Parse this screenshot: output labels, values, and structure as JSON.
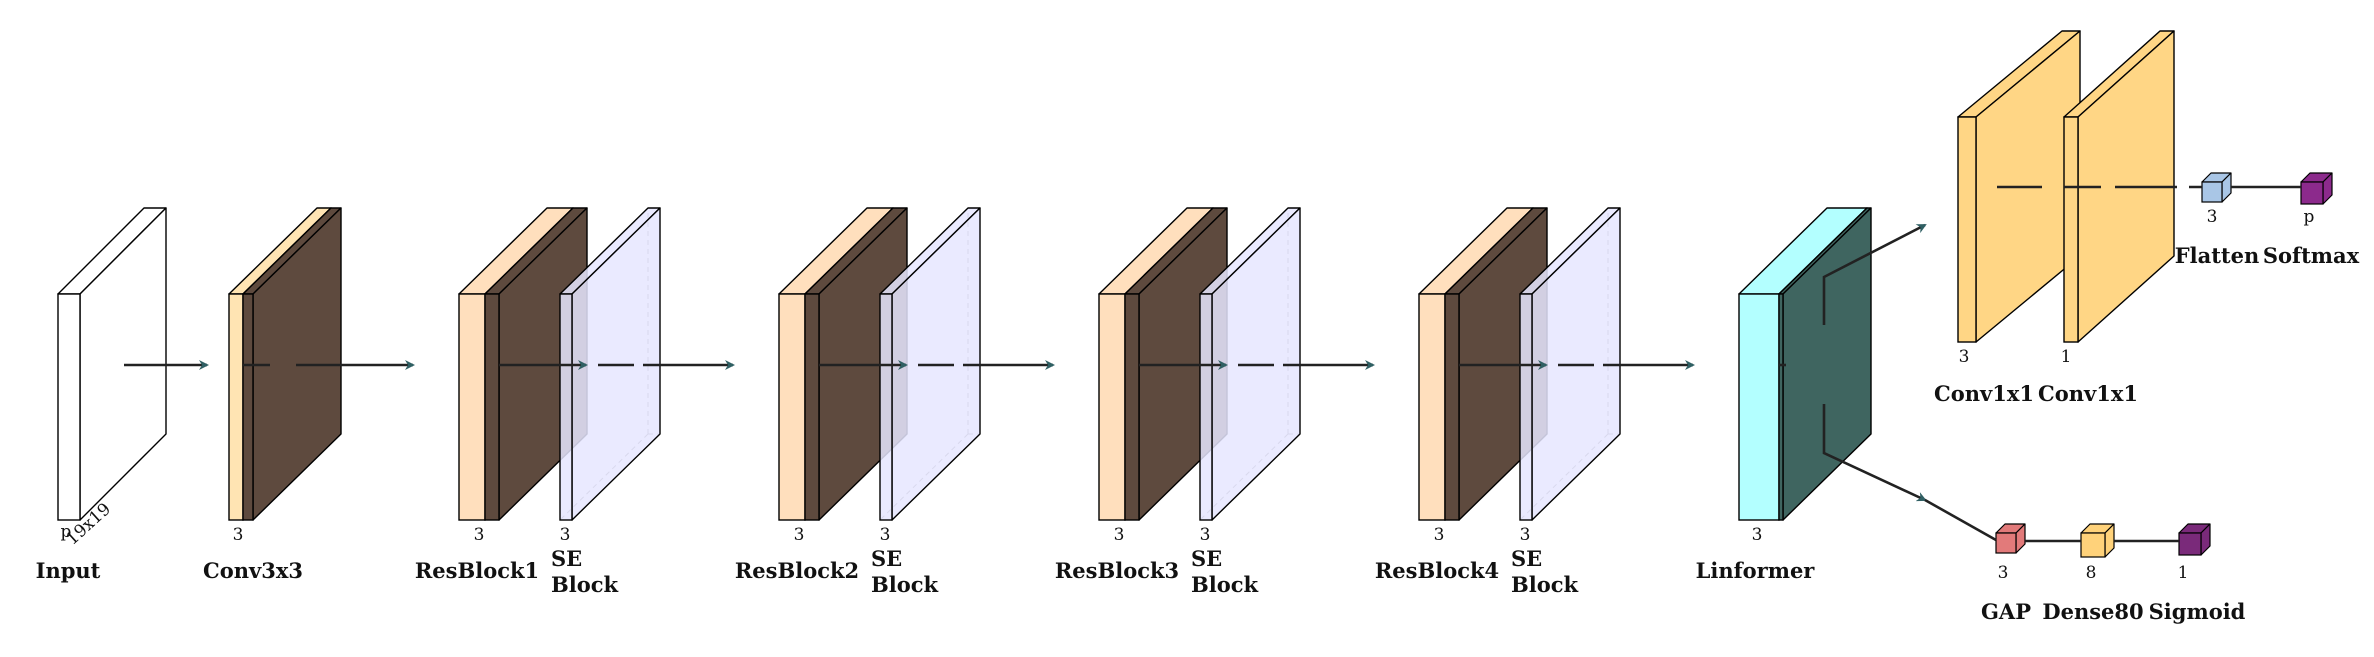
{
  "diagram": {
    "colors": {
      "input": "#ffffff",
      "conv": "#ffe4b3",
      "res": "#ffdfbd",
      "dark": "#5e4a3e",
      "se": "#e6e6ff",
      "linformer": "#b3ffff",
      "linformer_dark": "#3f6560",
      "conv1x1": "#ffd685",
      "flatten": "#a9c6e6",
      "softmax": "#8c2a8c",
      "gap": "#e27a7a",
      "dense": "#ffd27a",
      "sigmoid": "#7a2a7a",
      "arrow": "#2f5f63",
      "line": "#333333"
    },
    "layers": [
      {
        "id": "input",
        "name": "Input",
        "dims": [
          "p",
          "19x19"
        ]
      },
      {
        "id": "conv3x3",
        "name": "Conv3x3",
        "dims": [
          "3"
        ]
      },
      {
        "id": "resblock1",
        "name": "ResBlock1",
        "dims": [
          "3"
        ]
      },
      {
        "id": "se1",
        "name": "SE",
        "name2": "Block",
        "dims": [
          "3"
        ]
      },
      {
        "id": "resblock2",
        "name": "ResBlock2",
        "dims": [
          "3"
        ]
      },
      {
        "id": "se2",
        "name": "SE",
        "name2": "Block",
        "dims": [
          "3"
        ]
      },
      {
        "id": "resblock3",
        "name": "ResBlock3",
        "dims": [
          "3"
        ]
      },
      {
        "id": "se3",
        "name": "SE",
        "name2": "Block",
        "dims": [
          "3"
        ]
      },
      {
        "id": "resblock4",
        "name": "ResBlock4",
        "dims": [
          "3"
        ]
      },
      {
        "id": "se4",
        "name": "SE",
        "name2": "Block",
        "dims": [
          "3"
        ]
      },
      {
        "id": "linformer",
        "name": "Linformer",
        "dims": [
          "3"
        ]
      },
      {
        "id": "conv1x1a",
        "name": "Conv1x1",
        "dims": [
          "3"
        ]
      },
      {
        "id": "conv1x1b",
        "name": "Conv1x1",
        "dims": [
          "1"
        ]
      },
      {
        "id": "flatten",
        "name": "Flatten",
        "dims": [
          "3"
        ]
      },
      {
        "id": "softmax",
        "name": "Softmax",
        "dims": [
          "p"
        ]
      },
      {
        "id": "gap",
        "name": "GAP",
        "dims": [
          "3"
        ]
      },
      {
        "id": "dense80",
        "name": "Dense80",
        "dims": [
          "8"
        ]
      },
      {
        "id": "sigmoid",
        "name": "Sigmoid",
        "dims": [
          "1"
        ]
      }
    ]
  }
}
